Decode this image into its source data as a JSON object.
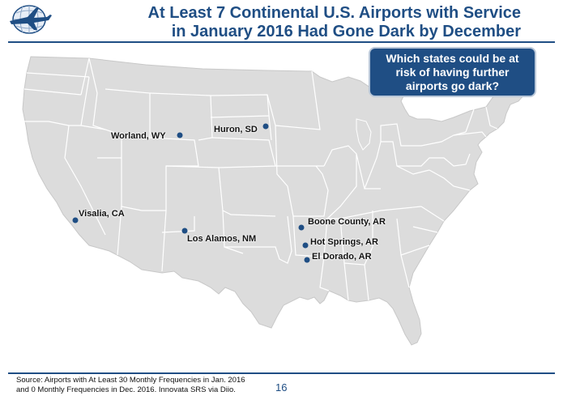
{
  "title_lines": [
    "At Least 7 Continental U.S. Airports with Service",
    "in January 2016 Had Gone Dark by December"
  ],
  "callout": "Which states could be at risk of having further airports go dark?",
  "airports": [
    {
      "label": "Worland, WY"
    },
    {
      "label": "Huron, SD"
    },
    {
      "label": "Visalia, CA"
    },
    {
      "label": "Los Alamos, NM"
    },
    {
      "label": "Boone County, AR"
    },
    {
      "label": "Hot Springs, AR"
    },
    {
      "label": "El Dorado, AR"
    }
  ],
  "source_lines": [
    "Source: Airports with At Least 30 Monthly Frequencies in Jan. 2016",
    "and 0 Monthly Frequencies in Dec. 2016. Innovata SRS via Diio."
  ],
  "page_number": "16",
  "colors": {
    "accent": "#1f4e84",
    "land": "#dcdcdc",
    "border": "#ffffff"
  },
  "logo": "airplane-globe-logo"
}
